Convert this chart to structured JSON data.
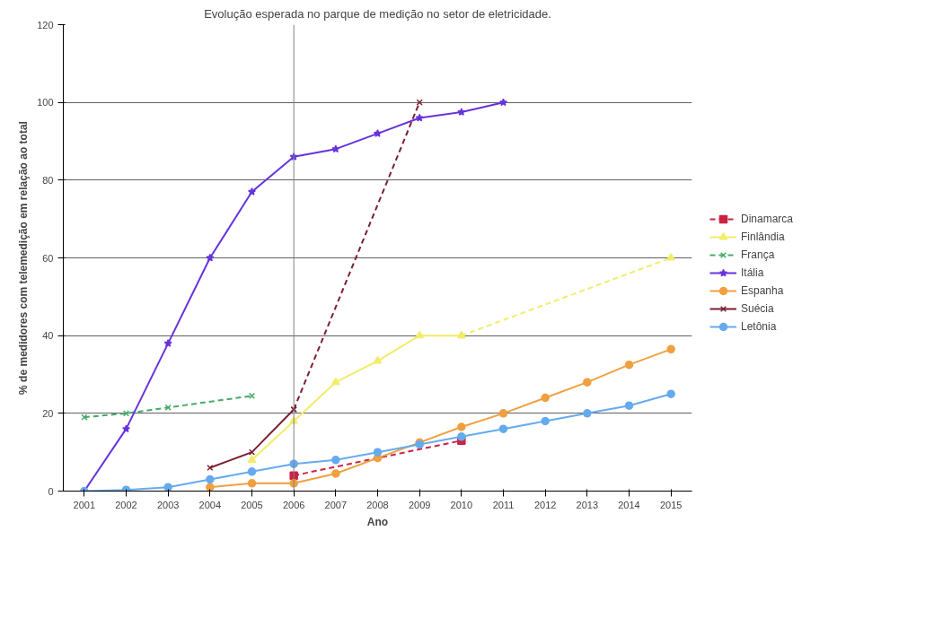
{
  "chart_data": {
    "type": "line",
    "title": "Evolução esperada no parque de medição no setor de eletricidade.",
    "xlabel": "Ano",
    "ylabel": "% de medidores com telemedição em relação ao total",
    "categories": [
      "2001",
      "2002",
      "2003",
      "2004",
      "2005",
      "2006",
      "2007",
      "2008",
      "2009",
      "2010",
      "2011",
      "2012",
      "2013",
      "2014",
      "2015"
    ],
    "ylim": [
      0,
      120
    ],
    "yticks": [
      0,
      20,
      40,
      60,
      80,
      100,
      120
    ],
    "grid": "y",
    "legend": "right",
    "ref_lines": [
      {
        "axis": "x",
        "value": "2006",
        "color": "#808080"
      }
    ],
    "series": [
      {
        "name": "Dinamarca",
        "color": "#cc2244",
        "marker": "square",
        "line_style": "dashed",
        "values": [
          null,
          null,
          null,
          null,
          null,
          4,
          null,
          null,
          null,
          13,
          null,
          null,
          null,
          null,
          null
        ]
      },
      {
        "name": "Finlândia",
        "color": "#f2ec6a",
        "marker": "triangle",
        "line_style": "solid",
        "values": [
          null,
          null,
          null,
          null,
          8,
          18,
          28,
          33.5,
          40,
          40,
          null,
          null,
          null,
          null,
          null
        ]
      },
      {
        "color": "#f2ec6a",
        "marker": "triangle",
        "line_style": "dashed",
        "values": [
          null,
          null,
          null,
          null,
          null,
          null,
          null,
          null,
          null,
          40,
          null,
          null,
          null,
          null,
          60
        ]
      },
      {
        "name": "França",
        "color": "#44aa66",
        "marker": "cross",
        "line_style": "dashed",
        "values": [
          19,
          20,
          21.5,
          null,
          24.5,
          null,
          null,
          null,
          null,
          null,
          null,
          null,
          null,
          null,
          null
        ]
      },
      {
        "name": "Itália",
        "color": "#6633dd",
        "marker": "star",
        "line_style": "solid",
        "values": [
          0,
          16,
          38,
          60,
          77,
          86,
          88,
          92,
          96,
          97.5,
          100,
          null,
          null,
          null,
          null
        ]
      },
      {
        "name": "Espanha",
        "color": "#f0a040",
        "marker": "circle",
        "line_style": "solid",
        "values": [
          null,
          null,
          null,
          1,
          2,
          2,
          4.5,
          8.5,
          12.5,
          16.5,
          20,
          24,
          28,
          32.5,
          36.5
        ]
      },
      {
        "name": "Suécia",
        "color": "#7a2030",
        "marker": "cross",
        "line_style": "solid",
        "values": [
          null,
          null,
          null,
          6,
          10,
          21,
          null,
          null,
          null,
          null,
          null,
          null,
          null,
          null,
          null
        ]
      },
      {
        "color": "#7a2030",
        "marker": "cross",
        "line_style": "dashed",
        "values": [
          null,
          null,
          null,
          null,
          null,
          21,
          null,
          null,
          100,
          null,
          null,
          null,
          null,
          null,
          null
        ]
      },
      {
        "name": "Letônia",
        "color": "#66aaee",
        "marker": "circle",
        "line_style": "solid",
        "values": [
          0,
          0.3,
          1,
          3,
          5,
          7,
          8,
          10,
          12,
          14,
          16,
          18,
          20,
          22,
          25
        ]
      }
    ]
  }
}
